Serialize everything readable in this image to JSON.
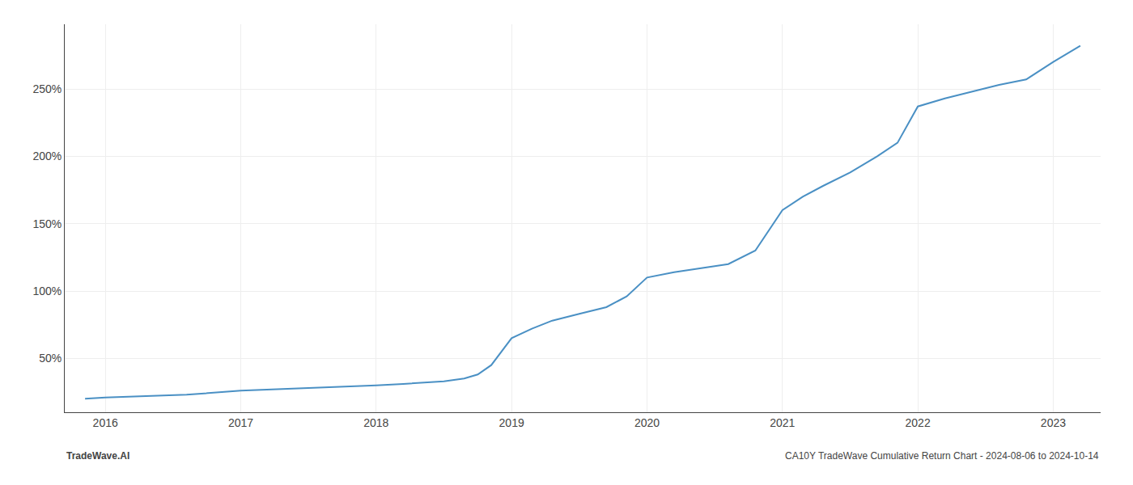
{
  "chart_data": {
    "type": "line",
    "x": [
      2015.85,
      2016.0,
      2016.3,
      2016.6,
      2017.0,
      2017.4,
      2017.8,
      2018.0,
      2018.2,
      2018.5,
      2018.65,
      2018.75,
      2018.85,
      2019.0,
      2019.15,
      2019.3,
      2019.5,
      2019.7,
      2019.85,
      2020.0,
      2020.2,
      2020.4,
      2020.6,
      2020.8,
      2021.0,
      2021.15,
      2021.3,
      2021.5,
      2021.7,
      2021.85,
      2022.0,
      2022.2,
      2022.4,
      2022.6,
      2022.8,
      2023.0,
      2023.2
    ],
    "values": [
      20,
      21,
      22,
      23,
      26,
      27.5,
      29,
      30,
      31,
      33,
      35,
      38,
      45,
      65,
      72,
      78,
      83,
      88,
      96,
      110,
      114,
      117,
      120,
      130,
      160,
      170,
      178,
      188,
      200,
      210,
      237,
      243,
      248,
      253,
      257,
      270,
      282
    ],
    "color": "#4a90c4",
    "xlim": [
      2015.7,
      2023.35
    ],
    "xticks": [
      2016,
      2017,
      2018,
      2019,
      2020,
      2021,
      2022,
      2023
    ],
    "ylim": [
      10,
      298
    ],
    "yticks": [
      {
        "value": 50,
        "label": "50%"
      },
      {
        "value": 100,
        "label": "100%"
      },
      {
        "value": 150,
        "label": "150%"
      },
      {
        "value": 200,
        "label": "200%"
      },
      {
        "value": 250,
        "label": "250%"
      }
    ],
    "grid": true,
    "annotations": [
      "TradeWave.AI",
      "CA10Y TradeWave Cumulative Return Chart - 2024-08-06 to 2024-10-14"
    ]
  }
}
